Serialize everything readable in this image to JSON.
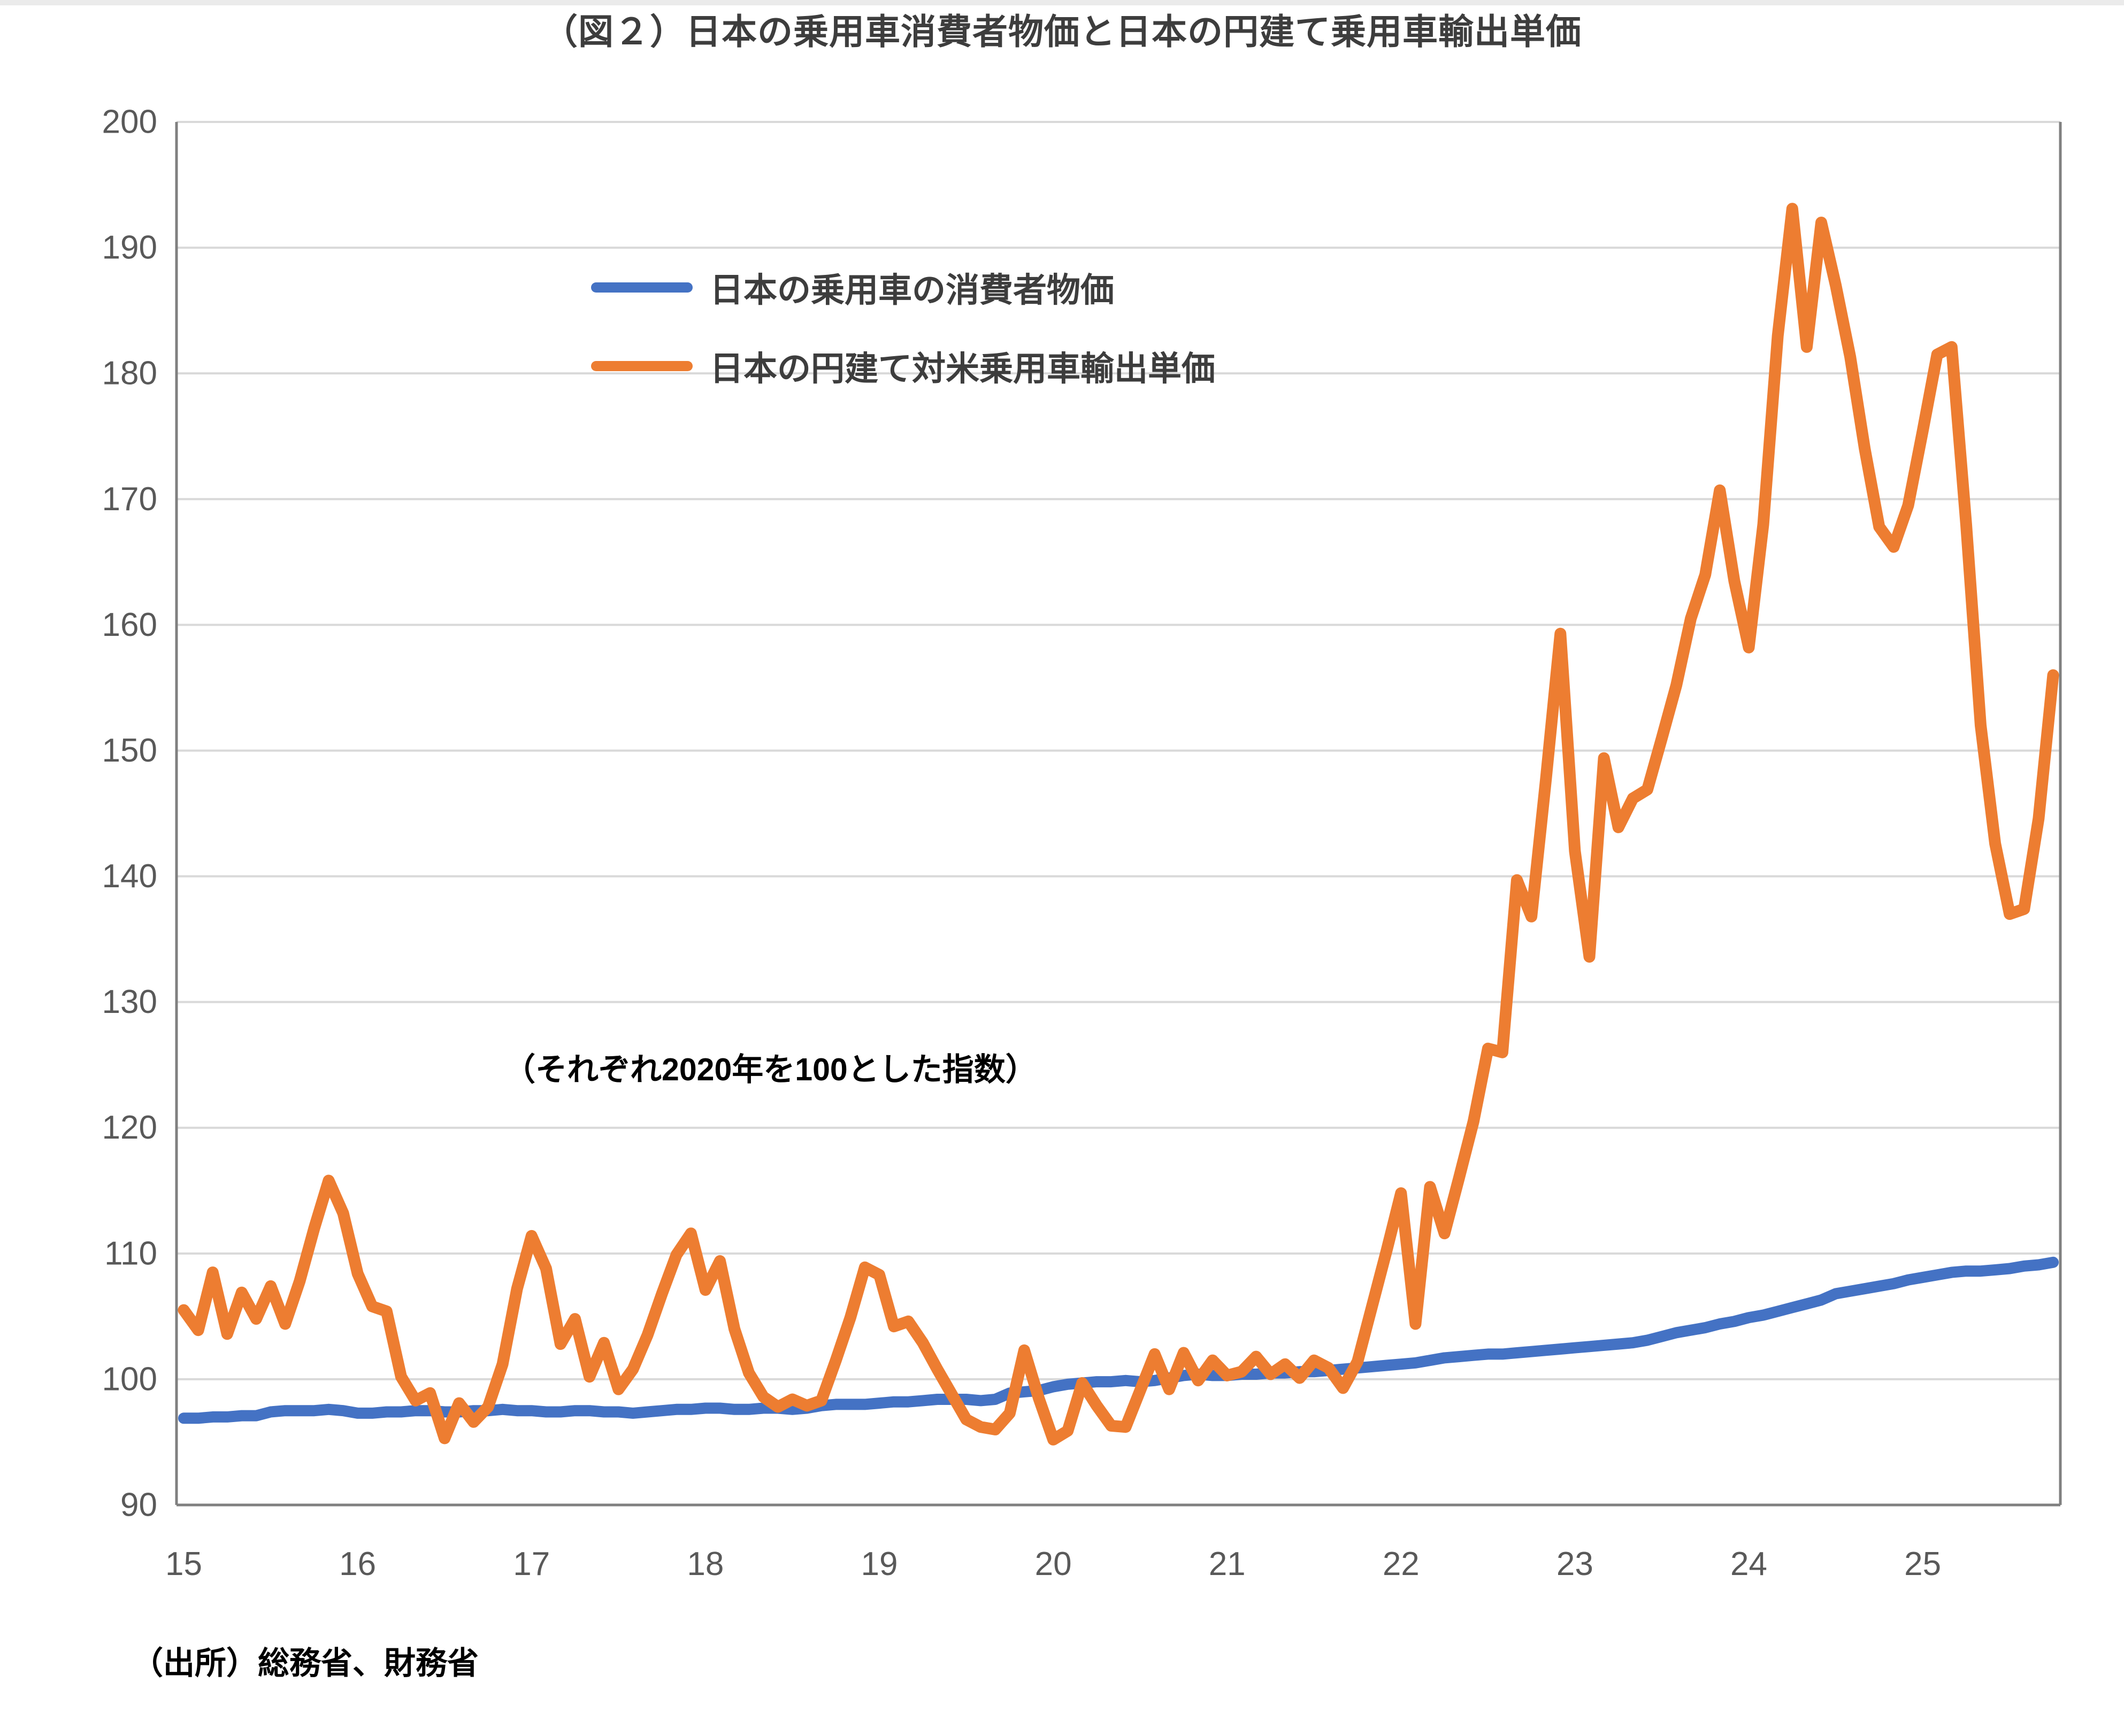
{
  "title": "（図２）日本の乗用車消費者物価と日本の円建て乗用車輸出単価",
  "annotation": "（それぞれ2020年を100とした指数）",
  "source_note": "（出所）総務省、財務省",
  "colors": {
    "cpi_line": "#4472C4",
    "export_line": "#ED7D31",
    "gridline": "#D9D9D9",
    "axis_border": "#808080",
    "tick_label": "#595959"
  },
  "legend": [
    {
      "label": "日本の乗用車の消費者物価",
      "color": "#4472C4"
    },
    {
      "label": "日本の円建て対米乗用車輸出単価",
      "color": "#ED7D31"
    }
  ],
  "chart_data": {
    "type": "line",
    "x_start": "2015-01",
    "x_end": "2025-10",
    "frequency": "monthly",
    "x_tick_labels": [
      "15",
      "16",
      "17",
      "18",
      "19",
      "20",
      "21",
      "22",
      "23",
      "24",
      "25"
    ],
    "y_ticks": [
      90,
      100,
      110,
      120,
      130,
      140,
      150,
      160,
      170,
      180,
      190,
      200
    ],
    "ylim": [
      90,
      200
    ],
    "grid": true,
    "legend_position": "inside-top-left",
    "series": [
      {
        "name": "日本の乗用車の消費者物価",
        "color": "#4472C4",
        "values": [
          96.9,
          96.9,
          97.0,
          97.0,
          97.1,
          97.1,
          97.4,
          97.5,
          97.5,
          97.5,
          97.6,
          97.5,
          97.3,
          97.3,
          97.4,
          97.4,
          97.5,
          97.5,
          97.4,
          97.4,
          97.5,
          97.5,
          97.6,
          97.5,
          97.5,
          97.4,
          97.4,
          97.5,
          97.5,
          97.4,
          97.4,
          97.3,
          97.4,
          97.5,
          97.6,
          97.6,
          97.7,
          97.7,
          97.6,
          97.6,
          97.7,
          97.7,
          97.6,
          97.7,
          97.9,
          98.0,
          98.0,
          98.0,
          98.1,
          98.2,
          98.2,
          98.3,
          98.4,
          98.4,
          98.4,
          98.3,
          98.4,
          98.9,
          99.0,
          99.1,
          99.4,
          99.6,
          99.7,
          99.8,
          99.8,
          99.9,
          99.8,
          99.9,
          100.1,
          100.3,
          100.4,
          100.3,
          100.3,
          100.4,
          100.4,
          100.5,
          100.5,
          100.6,
          100.6,
          100.7,
          100.8,
          100.9,
          101.0,
          101.1,
          101.2,
          101.3,
          101.5,
          101.7,
          101.8,
          101.9,
          102.0,
          102.0,
          102.1,
          102.2,
          102.3,
          102.4,
          102.5,
          102.6,
          102.7,
          102.8,
          102.9,
          103.1,
          103.4,
          103.7,
          103.9,
          104.1,
          104.4,
          104.6,
          104.9,
          105.1,
          105.4,
          105.7,
          106.0,
          106.3,
          106.8,
          107.0,
          107.2,
          107.4,
          107.6,
          107.9,
          108.1,
          108.3,
          108.5,
          108.6,
          108.6,
          108.7,
          108.8,
          109.0,
          109.1,
          109.3
        ]
      },
      {
        "name": "日本の円建て対米乗用車輸出単価",
        "color": "#ED7D31",
        "values": [
          105.5,
          103.9,
          108.5,
          103.6,
          106.9,
          104.8,
          107.4,
          104.4,
          107.8,
          112.0,
          115.8,
          113.2,
          108.4,
          105.8,
          105.4,
          100.2,
          98.3,
          98.9,
          95.3,
          98.1,
          96.6,
          97.8,
          101.2,
          107.2,
          111.4,
          108.8,
          102.8,
          104.8,
          100.2,
          102.9,
          99.2,
          100.8,
          103.5,
          106.8,
          109.9,
          111.6,
          107.1,
          109.4,
          104.0,
          100.5,
          98.6,
          97.8,
          98.4,
          97.9,
          98.3,
          101.5,
          104.9,
          108.9,
          108.3,
          104.2,
          104.6,
          102.9,
          100.8,
          98.8,
          96.8,
          96.2,
          96.0,
          97.3,
          102.3,
          98.5,
          95.2,
          95.9,
          99.7,
          97.9,
          96.3,
          96.2,
          99.1,
          102.0,
          99.2,
          102.1,
          99.9,
          101.5,
          100.3,
          100.6,
          101.8,
          100.4,
          101.2,
          100.1,
          101.5,
          100.9,
          99.3,
          101.4,
          105.8,
          110.2,
          114.8,
          104.4,
          115.3,
          111.6,
          116.0,
          120.5,
          126.3,
          126.0,
          139.7,
          136.8,
          147.7,
          159.3,
          142.0,
          133.6,
          149.4,
          143.9,
          146.2,
          146.9,
          151.0,
          155.2,
          160.5,
          164.0,
          170.7,
          163.5,
          158.2,
          168.0,
          183.0,
          193.1,
          182.1,
          192.0,
          187.0,
          181.3,
          174.0,
          167.8,
          166.2,
          169.5,
          175.4,
          181.5,
          182.1,
          168.0,
          152.0,
          142.6,
          137.0,
          137.4,
          144.6,
          156.0
        ]
      }
    ]
  }
}
